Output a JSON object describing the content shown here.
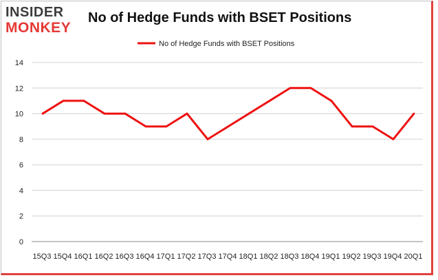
{
  "brand": {
    "line1": "INSIDER",
    "line2": "MONKEY"
  },
  "colors": {
    "series": "#ee1111",
    "grid": "#d0d0d0",
    "accent": "#e0403a"
  },
  "chart_data": {
    "type": "line",
    "title": "No of Hedge Funds with BSET Positions",
    "legend": "top-center",
    "grid": true,
    "xlabel": "",
    "ylabel": "",
    "ylim": [
      0,
      14
    ],
    "yticks": [
      0,
      2,
      4,
      6,
      8,
      10,
      12,
      14
    ],
    "categories": [
      "15Q3",
      "15Q4",
      "16Q1",
      "16Q2",
      "16Q3",
      "16Q4",
      "17Q1",
      "17Q2",
      "17Q3",
      "17Q4",
      "18Q1",
      "18Q2",
      "18Q3",
      "18Q4",
      "19Q1",
      "19Q2",
      "19Q3",
      "19Q4",
      "20Q1"
    ],
    "series": [
      {
        "name": "No of Hedge Funds with BSET Positions",
        "values": [
          10,
          11,
          11,
          10,
          10,
          9,
          9,
          10,
          8,
          9,
          10,
          11,
          12,
          12,
          11,
          9,
          9,
          8,
          10
        ]
      }
    ]
  }
}
